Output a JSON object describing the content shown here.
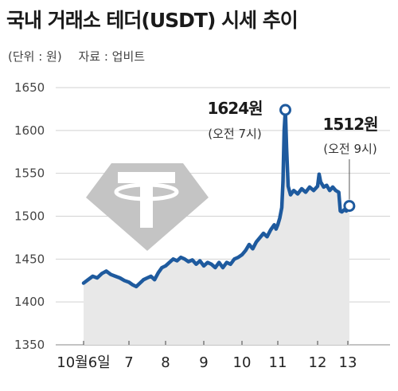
{
  "header": {
    "title": "국내 거래소 테더(USDT) 시세 추이",
    "unit": "(단위 : 원)",
    "source": "자료 : 업비트"
  },
  "chart_data": {
    "type": "line",
    "title": "국내 거래소 테더(USDT) 시세 추이",
    "xlabel": "",
    "ylabel": "",
    "ylim": [
      1350,
      1650
    ],
    "yticks": [
      1350,
      1400,
      1450,
      1500,
      1550,
      1600,
      1650
    ],
    "xticks": [
      "10월6일",
      "7",
      "8",
      "9",
      "10",
      "11",
      "12",
      "13"
    ],
    "grid": "horizontal",
    "colors": {
      "line": "#1e5a9e",
      "area": "#e8e8e8",
      "grid": "#d2d2d2",
      "logo": "#bdbdbd"
    },
    "series": [
      {
        "values": [
          [
            0.0,
            1422
          ],
          [
            0.1,
            1426
          ],
          [
            0.2,
            1430
          ],
          [
            0.3,
            1428
          ],
          [
            0.4,
            1433
          ],
          [
            0.5,
            1436
          ],
          [
            0.6,
            1432
          ],
          [
            0.7,
            1430
          ],
          [
            0.8,
            1428
          ],
          [
            0.9,
            1425
          ],
          [
            1.0,
            1423
          ],
          [
            1.1,
            1420
          ],
          [
            1.2,
            1418
          ],
          [
            1.3,
            1422
          ],
          [
            1.4,
            1426
          ],
          [
            1.5,
            1428
          ],
          [
            1.6,
            1430
          ],
          [
            1.7,
            1426
          ],
          [
            1.8,
            1434
          ],
          [
            1.9,
            1440
          ],
          [
            2.0,
            1442
          ],
          [
            2.1,
            1446
          ],
          [
            2.2,
            1450
          ],
          [
            2.3,
            1448
          ],
          [
            2.4,
            1452
          ],
          [
            2.5,
            1450
          ],
          [
            2.6,
            1447
          ],
          [
            2.7,
            1449
          ],
          [
            2.8,
            1444
          ],
          [
            2.9,
            1448
          ],
          [
            3.0,
            1442
          ],
          [
            3.1,
            1446
          ],
          [
            3.2,
            1444
          ],
          [
            3.3,
            1440
          ],
          [
            3.4,
            1446
          ],
          [
            3.5,
            1440
          ],
          [
            3.6,
            1446
          ],
          [
            3.7,
            1444
          ],
          [
            3.8,
            1450
          ],
          [
            3.9,
            1452
          ],
          [
            4.0,
            1455
          ],
          [
            4.1,
            1460
          ],
          [
            4.2,
            1467
          ],
          [
            4.3,
            1462
          ],
          [
            4.4,
            1470
          ],
          [
            4.5,
            1475
          ],
          [
            4.6,
            1480
          ],
          [
            4.7,
            1476
          ],
          [
            4.8,
            1484
          ],
          [
            4.9,
            1490
          ],
          [
            4.95,
            1485
          ],
          [
            5.0,
            1490
          ],
          [
            5.05,
            1498
          ],
          [
            5.1,
            1510
          ],
          [
            5.13,
            1540
          ],
          [
            5.16,
            1600
          ],
          [
            5.19,
            1624
          ],
          [
            5.22,
            1580
          ],
          [
            5.26,
            1535
          ],
          [
            5.32,
            1525
          ],
          [
            5.4,
            1530
          ],
          [
            5.5,
            1526
          ],
          [
            5.6,
            1532
          ],
          [
            5.7,
            1528
          ],
          [
            5.8,
            1534
          ],
          [
            5.9,
            1530
          ],
          [
            6.0,
            1535
          ],
          [
            6.05,
            1549
          ],
          [
            6.1,
            1540
          ],
          [
            6.2,
            1534
          ],
          [
            6.3,
            1536
          ],
          [
            6.4,
            1530
          ],
          [
            6.5,
            1534
          ],
          [
            6.6,
            1530
          ],
          [
            6.7,
            1528
          ],
          [
            6.75,
            1506
          ],
          [
            6.8,
            1505
          ],
          [
            6.9,
            1508
          ],
          [
            6.95,
            1506
          ],
          [
            7.0,
            1510
          ],
          [
            7.05,
            1512
          ]
        ]
      }
    ],
    "annotations": [
      {
        "x": 5.19,
        "y": 1624,
        "value_label": "1624원",
        "time_label": "(오전 7시)"
      },
      {
        "x": 7.05,
        "y": 1512,
        "value_label": "1512원",
        "time_label": "(오전 9시)"
      }
    ]
  }
}
